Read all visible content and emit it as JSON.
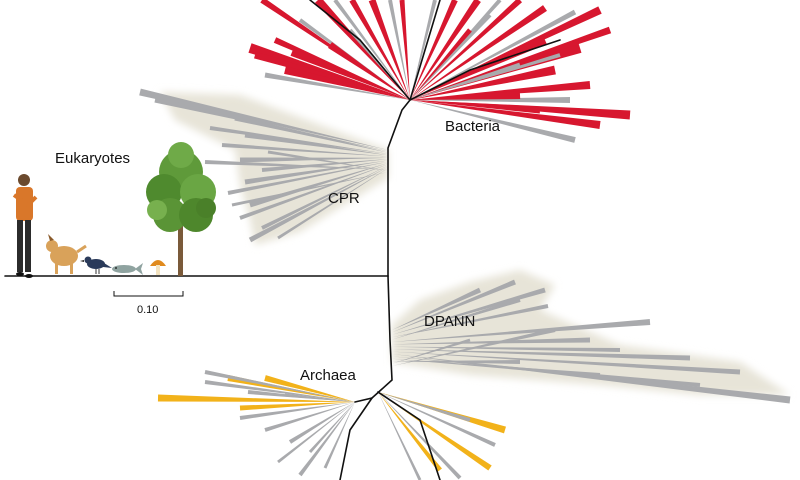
{
  "labels": {
    "bacteria": "Bacteria",
    "cpr": "CPR",
    "eukaryotes": "Eukaryotes",
    "dpann": "DPANN",
    "archaea": "Archaea"
  },
  "scale_bar": {
    "value": "0.10"
  },
  "icons": [
    "human-figure-icon",
    "dog-icon",
    "bird-icon",
    "fish-icon",
    "mushroom-icon",
    "tree-icon"
  ],
  "colors": {
    "bacteria_highlight": "#d7172f",
    "archaea_highlight": "#f2b21a",
    "unhighlighted_branch": "#a9aaad",
    "clade_shading": "#e7e4d8",
    "backbone": "#111111"
  }
}
